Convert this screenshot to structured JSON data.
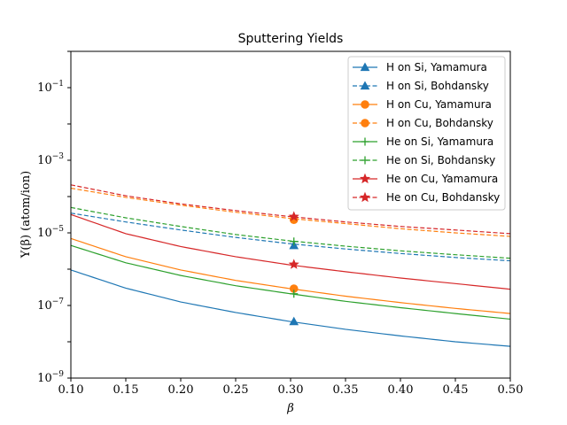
{
  "chart_data": {
    "type": "line",
    "title": "Sputtering Yields",
    "xlabel": "β",
    "ylabel": "Y(β) (atom/ion)",
    "xlim": [
      0.1,
      0.5
    ],
    "ylim": [
      1e-09,
      1
    ],
    "yscale": "log",
    "grid": false,
    "legend": "top-right",
    "xticks": [
      "0.10",
      "0.15",
      "0.20",
      "0.25",
      "0.30",
      "0.35",
      "0.40",
      "0.45",
      "0.50"
    ],
    "yticks": [
      {
        "value": 1e-09,
        "base": "10",
        "exp": "−9"
      },
      {
        "value": 1e-07,
        "base": "10",
        "exp": "−7"
      },
      {
        "value": 1e-05,
        "base": "10",
        "exp": "−5"
      },
      {
        "value": 0.001,
        "base": "10",
        "exp": "−3"
      },
      {
        "value": 0.1,
        "base": "10",
        "exp": "−1"
      }
    ],
    "series": [
      {
        "name": "H on Si, Yamamura",
        "color": "#1f77b4",
        "dash": "solid",
        "marker": "triangle",
        "x": [
          0.1,
          0.15,
          0.2,
          0.25,
          0.3,
          0.35,
          0.4,
          0.45,
          0.5
        ],
        "y": [
          9.5e-07,
          3e-07,
          1.25e-07,
          6.4e-08,
          3.6e-08,
          2.2e-08,
          1.45e-08,
          1e-08,
          7.5e-09
        ],
        "marker_at": [
          0.303,
          3.6e-08
        ]
      },
      {
        "name": "H on Si, Bohdansky",
        "color": "#1f77b4",
        "dash": "dashed",
        "marker": "triangle",
        "x": [
          0.1,
          0.15,
          0.2,
          0.25,
          0.3,
          0.35,
          0.4,
          0.45,
          0.5
        ],
        "y": [
          3.5e-05,
          2e-05,
          1.2e-05,
          7.5e-06,
          5e-06,
          3.6e-06,
          2.7e-06,
          2.1e-06,
          1.7e-06
        ],
        "marker_at": [
          0.303,
          4.5e-06
        ]
      },
      {
        "name": "H on Cu, Yamamura",
        "color": "#ff7f0e",
        "dash": "solid",
        "marker": "circle",
        "x": [
          0.1,
          0.15,
          0.2,
          0.25,
          0.3,
          0.35,
          0.4,
          0.45,
          0.5
        ],
        "y": [
          7e-06,
          2.2e-06,
          9.5e-07,
          4.9e-07,
          2.9e-07,
          1.8e-07,
          1.2e-07,
          8.3e-08,
          6e-08
        ],
        "marker_at": [
          0.303,
          2.9e-07
        ]
      },
      {
        "name": "H on Cu, Bohdansky",
        "color": "#ff7f0e",
        "dash": "dashed",
        "marker": "circle",
        "x": [
          0.1,
          0.15,
          0.2,
          0.25,
          0.3,
          0.35,
          0.4,
          0.45,
          0.5
        ],
        "y": [
          0.00017,
          9.5e-05,
          5.8e-05,
          3.7e-05,
          2.5e-05,
          1.8e-05,
          1.3e-05,
          1e-05,
          8e-06
        ],
        "marker_at": [
          0.303,
          2.3e-05
        ]
      },
      {
        "name": "He on Si, Yamamura",
        "color": "#2ca02c",
        "dash": "solid",
        "marker": "plus",
        "x": [
          0.1,
          0.15,
          0.2,
          0.25,
          0.3,
          0.35,
          0.4,
          0.45,
          0.5
        ],
        "y": [
          4.5e-06,
          1.5e-06,
          6.7e-07,
          3.5e-07,
          2.1e-07,
          1.3e-07,
          8.7e-08,
          6e-08,
          4.2e-08
        ],
        "marker_at": [
          0.303,
          2.1e-07
        ]
      },
      {
        "name": "He on Si, Bohdansky",
        "color": "#2ca02c",
        "dash": "dashed",
        "marker": "plus",
        "x": [
          0.1,
          0.15,
          0.2,
          0.25,
          0.3,
          0.35,
          0.4,
          0.45,
          0.5
        ],
        "y": [
          5e-05,
          2.6e-05,
          1.5e-05,
          9e-06,
          6e-06,
          4.3e-06,
          3.2e-06,
          2.5e-06,
          2e-06
        ],
        "marker_at": [
          0.303,
          5.8e-06
        ]
      },
      {
        "name": "He on Cu, Yamamura",
        "color": "#d62728",
        "dash": "solid",
        "marker": "star",
        "x": [
          0.1,
          0.15,
          0.2,
          0.25,
          0.3,
          0.35,
          0.4,
          0.45,
          0.5
        ],
        "y": [
          3.2e-05,
          9.5e-06,
          4.2e-06,
          2.2e-06,
          1.3e-06,
          8.5e-07,
          5.7e-07,
          4e-07,
          2.8e-07
        ],
        "marker_at": [
          0.303,
          1.35e-06
        ]
      },
      {
        "name": "He on Cu, Bohdansky",
        "color": "#d62728",
        "dash": "dashed",
        "marker": "star",
        "x": [
          0.1,
          0.15,
          0.2,
          0.25,
          0.3,
          0.35,
          0.4,
          0.45,
          0.5
        ],
        "y": [
          0.00021,
          0.000105,
          6.3e-05,
          4.1e-05,
          2.8e-05,
          2e-05,
          1.5e-05,
          1.2e-05,
          9.5e-06
        ],
        "marker_at": [
          0.303,
          2.8e-05
        ]
      }
    ]
  }
}
